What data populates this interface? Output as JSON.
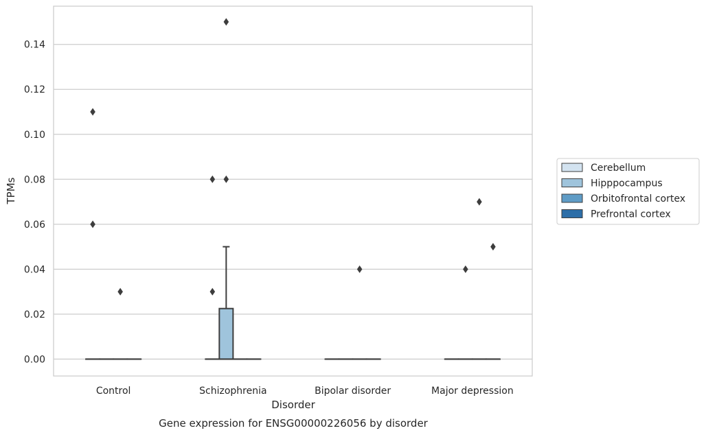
{
  "chart_data": {
    "type": "box",
    "title": "",
    "caption": "Gene expression for ENSG00000226056 by disorder",
    "xlabel": "Disorder",
    "ylabel": "TPMs",
    "ylim": [
      -0.0075,
      0.157
    ],
    "yticks": [
      0.0,
      0.02,
      0.04,
      0.06,
      0.08,
      0.1,
      0.12,
      0.14
    ],
    "ytick_labels": [
      "0.00",
      "0.02",
      "0.04",
      "0.06",
      "0.08",
      "0.10",
      "0.12",
      "0.14"
    ],
    "grid": "horizontal",
    "legend_position": "right",
    "categories": [
      "Control",
      "Schizophrenia",
      "Bipolar disorder",
      "Major depression"
    ],
    "series": [
      {
        "name": "Cerebellum",
        "color": "#d3e3f0",
        "boxes": [
          {
            "q1": 0,
            "median": 0,
            "q3": 0,
            "whisker_low": 0,
            "whisker_high": 0,
            "outliers": [
              0.06,
              0.11
            ]
          },
          {
            "q1": 0,
            "median": 0,
            "q3": 0,
            "whisker_low": 0,
            "whisker_high": 0,
            "outliers": [
              0.03,
              0.08
            ]
          },
          {
            "q1": 0,
            "median": 0,
            "q3": 0,
            "whisker_low": 0,
            "whisker_high": 0,
            "outliers": []
          },
          {
            "q1": 0,
            "median": 0,
            "q3": 0,
            "whisker_low": 0,
            "whisker_high": 0,
            "outliers": []
          }
        ]
      },
      {
        "name": "Hipppocampus",
        "color": "#9fc4dc",
        "boxes": [
          {
            "q1": 0,
            "median": 0,
            "q3": 0,
            "whisker_low": 0,
            "whisker_high": 0,
            "outliers": []
          },
          {
            "q1": 0,
            "median": 0,
            "q3": 0.0225,
            "whisker_low": 0,
            "whisker_high": 0.05,
            "outliers": [
              0.08,
              0.15
            ]
          },
          {
            "q1": 0,
            "median": 0,
            "q3": 0,
            "whisker_low": 0,
            "whisker_high": 0,
            "outliers": []
          },
          {
            "q1": 0,
            "median": 0,
            "q3": 0,
            "whisker_low": 0,
            "whisker_high": 0,
            "outliers": [
              0.04
            ]
          }
        ]
      },
      {
        "name": "Orbitofrontal cortex",
        "color": "#5f9cc6",
        "boxes": [
          {
            "q1": 0,
            "median": 0,
            "q3": 0,
            "whisker_low": 0,
            "whisker_high": 0,
            "outliers": [
              0.03
            ]
          },
          {
            "q1": 0,
            "median": 0,
            "q3": 0,
            "whisker_low": 0,
            "whisker_high": 0,
            "outliers": []
          },
          {
            "q1": 0,
            "median": 0,
            "q3": 0,
            "whisker_low": 0,
            "whisker_high": 0,
            "outliers": [
              0.04
            ]
          },
          {
            "q1": 0,
            "median": 0,
            "q3": 0,
            "whisker_low": 0,
            "whisker_high": 0,
            "outliers": [
              0.07
            ]
          }
        ]
      },
      {
        "name": "Prefrontal cortex",
        "color": "#2c6ea8",
        "boxes": [
          {
            "q1": 0,
            "median": 0,
            "q3": 0,
            "whisker_low": 0,
            "whisker_high": 0,
            "outliers": []
          },
          {
            "q1": 0,
            "median": 0,
            "q3": 0,
            "whisker_low": 0,
            "whisker_high": 0,
            "outliers": []
          },
          {
            "q1": 0,
            "median": 0,
            "q3": 0,
            "whisker_low": 0,
            "whisker_high": 0,
            "outliers": []
          },
          {
            "q1": 0,
            "median": 0,
            "q3": 0,
            "whisker_low": 0,
            "whisker_high": 0,
            "outliers": [
              0.05
            ]
          }
        ]
      }
    ]
  },
  "colors": {
    "frame": "#cccccc",
    "grid": "#cccccc",
    "box_line": "#3d3d3d",
    "text": "#262626"
  }
}
